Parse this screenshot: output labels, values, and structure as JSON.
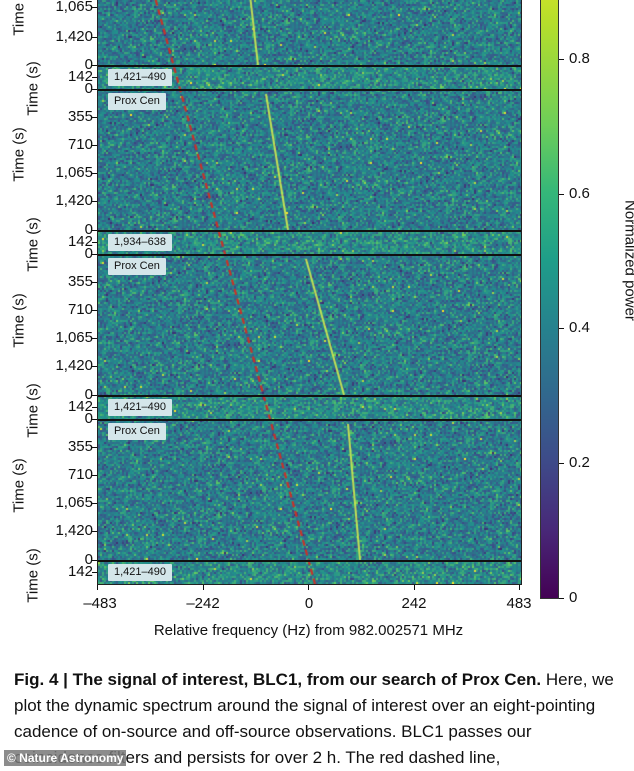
{
  "chart_data": {
    "type": "heatmap",
    "title": "",
    "xlabel": "Relative frequency (Hz) from 982.002571 MHz",
    "ylabel": "Time (s)",
    "x_ticks": [
      "-483",
      "-242",
      "0",
      "242",
      "483"
    ],
    "xlim": [
      -483,
      483
    ],
    "colorbar": {
      "label": "Normalized power",
      "ticks": [
        "0",
        "0.2",
        "0.4",
        "0.6",
        "0.8"
      ],
      "range": [
        0,
        1
      ],
      "colormap": "viridis"
    },
    "panels": [
      {
        "label": "Prox Cen",
        "type": "on-source",
        "y_ticks": [
          "1,065",
          "1,420"
        ],
        "partial": true
      },
      {
        "label": "1,421–490",
        "type": "off-source",
        "y_ticks": [
          "0",
          "142"
        ]
      },
      {
        "label": "Prox Cen",
        "type": "on-source",
        "y_ticks": [
          "0",
          "355",
          "710",
          "1,065",
          "1,420"
        ]
      },
      {
        "label": "1,934–638",
        "type": "off-source",
        "y_ticks": [
          "0",
          "142"
        ]
      },
      {
        "label": "Prox Cen",
        "type": "on-source",
        "y_ticks": [
          "0",
          "355",
          "710",
          "1,065",
          "1,420"
        ]
      },
      {
        "label": "1,421–490",
        "type": "off-source",
        "y_ticks": [
          "0",
          "142"
        ]
      },
      {
        "label": "Prox Cen",
        "type": "on-source",
        "y_ticks": [
          "0",
          "355",
          "710",
          "1,065",
          "1,420"
        ]
      },
      {
        "label": "1,421–490",
        "type": "off-source",
        "y_ticks": [
          "0",
          "142"
        ]
      }
    ],
    "annotations": [
      {
        "type": "red-dashed-line",
        "description": "drift-rate track",
        "x_start_hz": -355,
        "x_end_hz": 10
      },
      {
        "type": "signal",
        "name": "BLC1",
        "description": "narrowband drifting signal in on-source panels",
        "x_start_hz": -150,
        "x_end_hz": 115
      }
    ]
  },
  "axes": {
    "xlabel": "Relative frequency (Hz) from 982.002571 MHz",
    "ylabel": "Time (s)",
    "x_ticks": [
      "–483",
      "–242",
      "0",
      "242",
      "483"
    ],
    "colorbar_label": "Normalized power",
    "colorbar_ticks": [
      "0",
      "0.2",
      "0.4",
      "0.6",
      "0.8"
    ]
  },
  "panel_labels": [
    "1,421–490",
    "Prox Cen",
    "1,934–638",
    "Prox Cen",
    "1,421–490",
    "Prox Cen",
    "1,421–490"
  ],
  "caption": {
    "bold": "Fig. 4 | The signal of interest, BLC1, from our search of Prox Cen.",
    "text": " Here, we plot the dynamic spectrum around the signal of interest over an eight-pointing cadence of on-source and off-source observations. BLC1 passes our coincidence filters and persists for over 2 h. The red dashed line,"
  },
  "watermark": "© Nature Astronomy"
}
